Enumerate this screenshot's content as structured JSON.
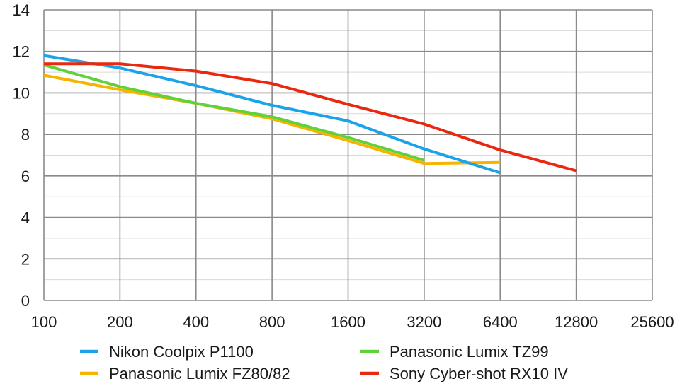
{
  "chart_data": {
    "type": "line",
    "title": "",
    "xlabel": "",
    "ylabel": "",
    "x_scale": "log2",
    "categories": [
      "100",
      "200",
      "400",
      "800",
      "1600",
      "3200",
      "6400",
      "12800",
      "25600"
    ],
    "xlim": [
      100,
      25600
    ],
    "ylim": [
      0,
      14
    ],
    "y_ticks": [
      "0",
      "2",
      "4",
      "6",
      "8",
      "10",
      "12",
      "14"
    ],
    "grid": true,
    "legend_position": "bottom",
    "series": [
      {
        "name": "Nikon Coolpix P1100",
        "color": "#1aa3e8",
        "x": [
          100,
          200,
          400,
          800,
          1600,
          3200,
          6400
        ],
        "values": [
          11.8,
          11.2,
          10.35,
          9.4,
          8.65,
          7.3,
          6.15
        ]
      },
      {
        "name": "Panasonic Lumix TZ99",
        "color": "#5fd13a",
        "x": [
          100,
          200,
          400,
          800,
          1600,
          3200
        ],
        "values": [
          11.35,
          10.3,
          9.5,
          8.85,
          7.85,
          6.75
        ]
      },
      {
        "name": "Panasonic Lumix FZ80/82",
        "color": "#f5b400",
        "x": [
          100,
          200,
          400,
          800,
          1600,
          3200,
          6400
        ],
        "values": [
          10.85,
          10.15,
          9.5,
          8.75,
          7.7,
          6.6,
          6.65
        ]
      },
      {
        "name": "Sony Cyber-shot RX10 IV",
        "color": "#e8280f",
        "x": [
          100,
          200,
          400,
          800,
          1600,
          3200,
          6400,
          12800
        ],
        "values": [
          11.4,
          11.4,
          11.05,
          10.45,
          9.45,
          8.5,
          7.25,
          6.25
        ]
      }
    ]
  },
  "legend": {
    "order": [
      0,
      1,
      2,
      3
    ]
  }
}
